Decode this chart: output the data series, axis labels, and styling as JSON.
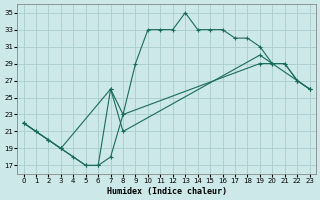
{
  "title": "",
  "xlabel": "Humidex (Indice chaleur)",
  "ylabel": "",
  "background_color": "#cce8e8",
  "grid_color": "#aacccc",
  "line_color": "#1a6b5a",
  "xlim": [
    -0.5,
    23.5
  ],
  "ylim": [
    16,
    36
  ],
  "xticks": [
    0,
    1,
    2,
    3,
    4,
    5,
    6,
    7,
    8,
    9,
    10,
    11,
    12,
    13,
    14,
    15,
    16,
    17,
    18,
    19,
    20,
    21,
    22,
    23
  ],
  "yticks": [
    17,
    19,
    21,
    23,
    25,
    27,
    29,
    31,
    33,
    35
  ],
  "series1_x": [
    0,
    1,
    2,
    3,
    4,
    5,
    6,
    7,
    8,
    9,
    10,
    11,
    12,
    13,
    14,
    15,
    16,
    17,
    18,
    19,
    20,
    21,
    22,
    23
  ],
  "series1_y": [
    22,
    21,
    20,
    19,
    18,
    17,
    17,
    18,
    23,
    29,
    33,
    33,
    33,
    35,
    33,
    33,
    33,
    32,
    32,
    31,
    29,
    29,
    27,
    26
  ],
  "series2_x": [
    0,
    1,
    2,
    3,
    5,
    6,
    7,
    8,
    19,
    20,
    21,
    22,
    23
  ],
  "series2_y": [
    22,
    21,
    20,
    19,
    17,
    17,
    26,
    23,
    29,
    29,
    29,
    27,
    26
  ],
  "series3_x": [
    0,
    3,
    7,
    8,
    19,
    22,
    23
  ],
  "series3_y": [
    22,
    19,
    26,
    21,
    30,
    27,
    26
  ]
}
